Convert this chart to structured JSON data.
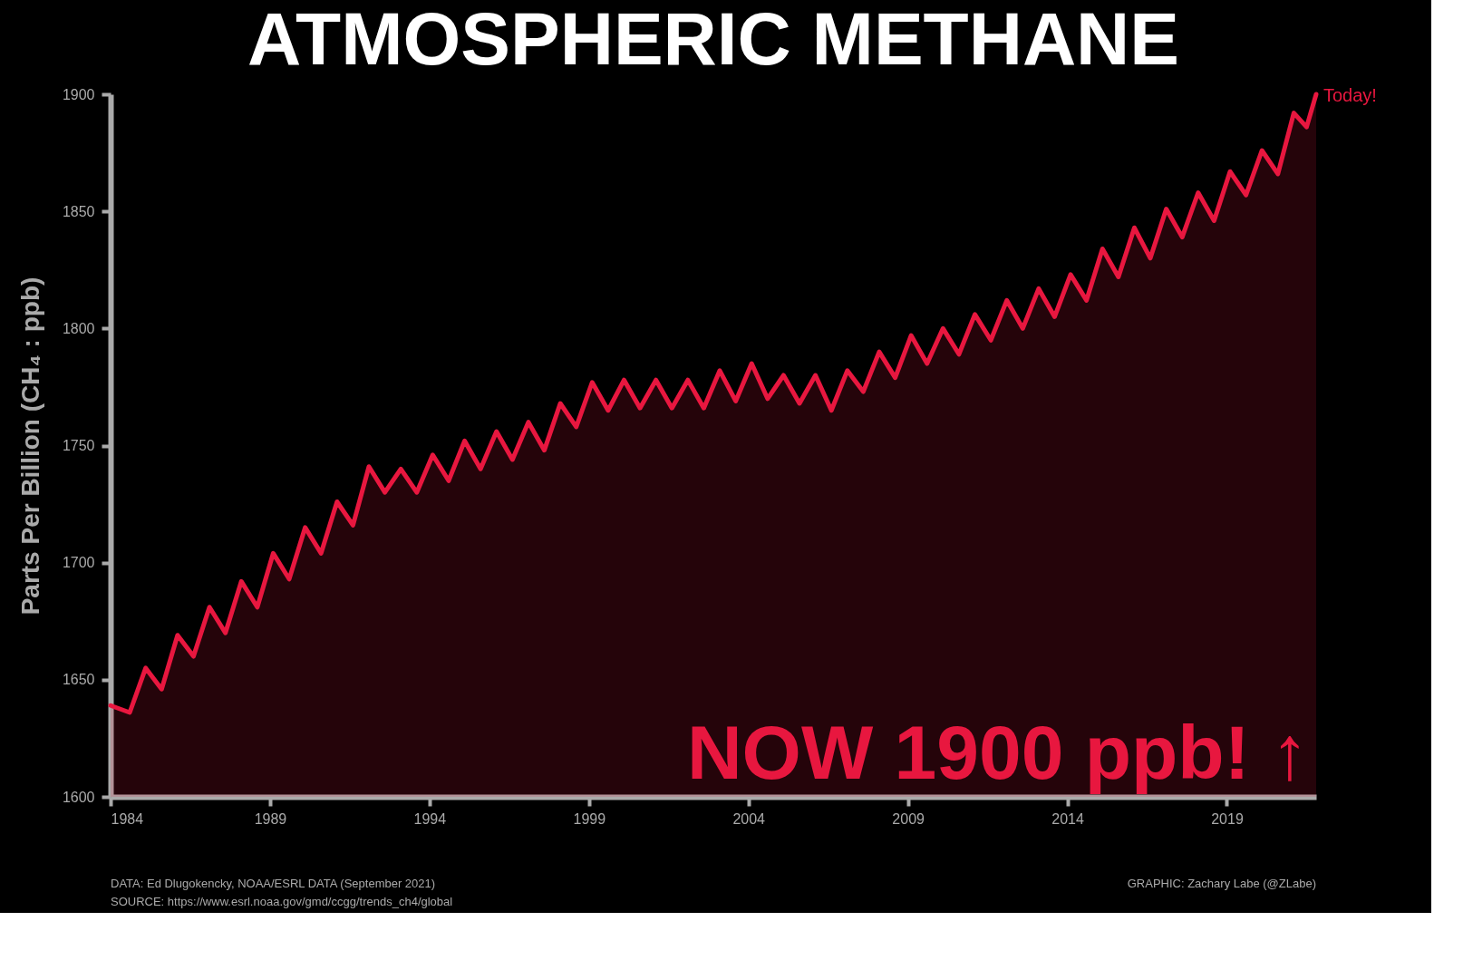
{
  "chart_data": {
    "type": "area",
    "title": "ATMOSPHERIC METHANE",
    "ylabel": "Parts Per Billion (CH₄ : ppb)",
    "x": [
      1984.0,
      1984.6,
      1985.1,
      1985.6,
      1986.1,
      1986.6,
      1987.1,
      1987.6,
      1988.1,
      1988.6,
      1989.1,
      1989.6,
      1990.1,
      1990.6,
      1991.1,
      1991.6,
      1992.1,
      1992.6,
      1993.1,
      1993.6,
      1994.1,
      1994.6,
      1995.1,
      1995.6,
      1996.1,
      1996.6,
      1997.1,
      1997.6,
      1998.1,
      1998.6,
      1999.1,
      1999.6,
      2000.1,
      2000.6,
      2001.1,
      2001.6,
      2002.1,
      2002.6,
      2003.1,
      2003.6,
      2004.1,
      2004.6,
      2005.1,
      2005.6,
      2006.1,
      2006.6,
      2007.1,
      2007.6,
      2008.1,
      2008.6,
      2009.1,
      2009.6,
      2010.1,
      2010.6,
      2011.1,
      2011.6,
      2012.1,
      2012.6,
      2013.1,
      2013.6,
      2014.1,
      2014.6,
      2015.1,
      2015.6,
      2016.1,
      2016.6,
      2017.1,
      2017.6,
      2018.1,
      2018.6,
      2019.1,
      2019.6,
      2020.1,
      2020.6,
      2021.1,
      2021.5,
      2021.8
    ],
    "series": [
      {
        "color": "#e8173f",
        "values": [
          1639,
          1636,
          1655,
          1646,
          1669,
          1660,
          1681,
          1670,
          1692,
          1681,
          1704,
          1693,
          1715,
          1704,
          1726,
          1716,
          1741,
          1730,
          1740,
          1730,
          1746,
          1735,
          1752,
          1740,
          1756,
          1744,
          1760,
          1748,
          1768,
          1758,
          1777,
          1765,
          1778,
          1766,
          1778,
          1766,
          1778,
          1766,
          1782,
          1769,
          1785,
          1770,
          1780,
          1768,
          1780,
          1765,
          1782,
          1773,
          1790,
          1779,
          1797,
          1785,
          1800,
          1789,
          1806,
          1795,
          1812,
          1800,
          1817,
          1805,
          1823,
          1812,
          1834,
          1822,
          1843,
          1830,
          1851,
          1839,
          1858,
          1846,
          1867,
          1857,
          1876,
          1866,
          1892,
          1886,
          1900
        ]
      }
    ],
    "xlim": [
      1984,
      2021.8
    ],
    "xticks": [
      1984,
      1989,
      1994,
      1999,
      2004,
      2009,
      2014,
      2019
    ],
    "ylim": [
      1600,
      1900
    ],
    "yticks": [
      1600,
      1650,
      1700,
      1750,
      1800,
      1850,
      1900
    ],
    "grid": false,
    "annotations": [
      {
        "text": "Today!",
        "x": 2021.8,
        "y": 1900
      },
      "NOW 1900 ppb! ↑",
      "DATA: Ed Dlugokencky, NOAA/ESRL DATA  (September 2021)",
      "SOURCE: https://www.esrl.noaa.gov/gmd/ccgg/trends_ch4/global",
      "GRAPHIC: Zachary Labe (@ZLabe)"
    ]
  }
}
